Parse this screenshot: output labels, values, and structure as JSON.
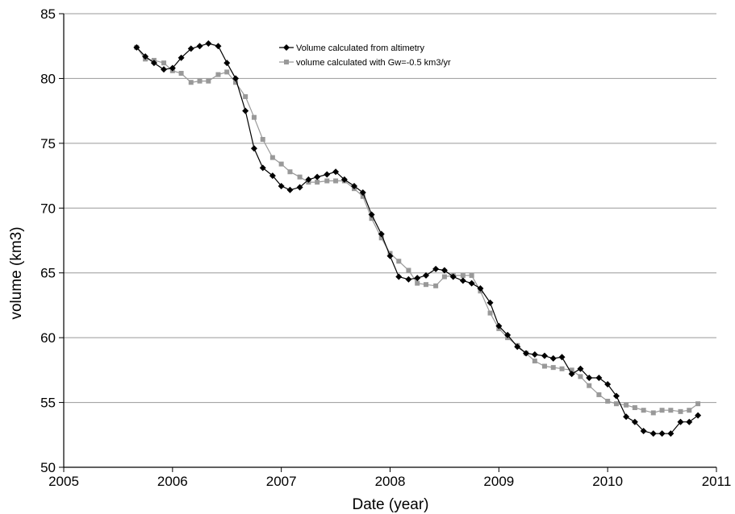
{
  "chart_data": {
    "type": "line",
    "title": "",
    "xlabel": "Date (year)",
    "ylabel": "volume (km3)",
    "xlim": [
      2005,
      2011
    ],
    "ylim": [
      50,
      85
    ],
    "xticks": [
      "2005",
      "2006",
      "2007",
      "2008",
      "2009",
      "2010",
      "2011"
    ],
    "yticks": [
      "50",
      "55",
      "60",
      "65",
      "70",
      "75",
      "80",
      "85"
    ],
    "grid": "horizontal",
    "legend_position": "top-center",
    "series": [
      {
        "name": "Volume calculated from altimetry",
        "color": "#000000",
        "marker": "diamond",
        "points": [
          [
            2005.67,
            82.4
          ],
          [
            2005.75,
            81.7
          ],
          [
            2005.83,
            81.2
          ],
          [
            2005.92,
            80.7
          ],
          [
            2006.0,
            80.8
          ],
          [
            2006.08,
            81.6
          ],
          [
            2006.17,
            82.3
          ],
          [
            2006.25,
            82.5
          ],
          [
            2006.33,
            82.7
          ],
          [
            2006.42,
            82.5
          ],
          [
            2006.5,
            81.2
          ],
          [
            2006.58,
            80.0
          ],
          [
            2006.67,
            77.5
          ],
          [
            2006.75,
            74.6
          ],
          [
            2006.83,
            73.1
          ],
          [
            2006.92,
            72.5
          ],
          [
            2007.0,
            71.7
          ],
          [
            2007.08,
            71.4
          ],
          [
            2007.17,
            71.6
          ],
          [
            2007.25,
            72.2
          ],
          [
            2007.33,
            72.4
          ],
          [
            2007.42,
            72.6
          ],
          [
            2007.5,
            72.8
          ],
          [
            2007.58,
            72.2
          ],
          [
            2007.67,
            71.7
          ],
          [
            2007.75,
            71.2
          ],
          [
            2007.83,
            69.5
          ],
          [
            2007.92,
            68.0
          ],
          [
            2008.0,
            66.3
          ],
          [
            2008.08,
            64.7
          ],
          [
            2008.17,
            64.5
          ],
          [
            2008.25,
            64.6
          ],
          [
            2008.33,
            64.8
          ],
          [
            2008.42,
            65.3
          ],
          [
            2008.5,
            65.2
          ],
          [
            2008.58,
            64.7
          ],
          [
            2008.67,
            64.4
          ],
          [
            2008.75,
            64.2
          ],
          [
            2008.83,
            63.8
          ],
          [
            2008.92,
            62.7
          ],
          [
            2009.0,
            60.9
          ],
          [
            2009.08,
            60.2
          ],
          [
            2009.17,
            59.3
          ],
          [
            2009.25,
            58.8
          ],
          [
            2009.33,
            58.7
          ],
          [
            2009.42,
            58.6
          ],
          [
            2009.5,
            58.4
          ],
          [
            2009.58,
            58.5
          ],
          [
            2009.67,
            57.2
          ],
          [
            2009.75,
            57.6
          ],
          [
            2009.83,
            56.9
          ],
          [
            2009.92,
            56.9
          ],
          [
            2010.0,
            56.4
          ],
          [
            2010.08,
            55.5
          ],
          [
            2010.17,
            53.9
          ],
          [
            2010.25,
            53.5
          ],
          [
            2010.33,
            52.8
          ],
          [
            2010.42,
            52.6
          ],
          [
            2010.5,
            52.6
          ],
          [
            2010.58,
            52.6
          ],
          [
            2010.67,
            53.5
          ],
          [
            2010.75,
            53.5
          ],
          [
            2010.83,
            54.0
          ]
        ]
      },
      {
        "name": "volume calculated with Gw=-0.5 km3/yr",
        "color": "#999999",
        "marker": "square",
        "points": [
          [
            2005.67,
            82.4
          ],
          [
            2005.75,
            81.5
          ],
          [
            2005.83,
            81.4
          ],
          [
            2005.92,
            81.2
          ],
          [
            2006.0,
            80.6
          ],
          [
            2006.08,
            80.4
          ],
          [
            2006.17,
            79.7
          ],
          [
            2006.25,
            79.8
          ],
          [
            2006.33,
            79.8
          ],
          [
            2006.42,
            80.3
          ],
          [
            2006.5,
            80.5
          ],
          [
            2006.58,
            79.7
          ],
          [
            2006.67,
            78.6
          ],
          [
            2006.75,
            77.0
          ],
          [
            2006.83,
            75.3
          ],
          [
            2006.92,
            73.9
          ],
          [
            2007.0,
            73.4
          ],
          [
            2007.08,
            72.8
          ],
          [
            2007.17,
            72.4
          ],
          [
            2007.25,
            72.0
          ],
          [
            2007.33,
            72.0
          ],
          [
            2007.42,
            72.1
          ],
          [
            2007.5,
            72.1
          ],
          [
            2007.58,
            72.1
          ],
          [
            2007.67,
            71.5
          ],
          [
            2007.75,
            70.9
          ],
          [
            2007.83,
            69.2
          ],
          [
            2007.92,
            67.7
          ],
          [
            2008.0,
            66.5
          ],
          [
            2008.08,
            65.9
          ],
          [
            2008.17,
            65.2
          ],
          [
            2008.25,
            64.2
          ],
          [
            2008.33,
            64.1
          ],
          [
            2008.42,
            64.0
          ],
          [
            2008.5,
            64.7
          ],
          [
            2008.58,
            64.8
          ],
          [
            2008.67,
            64.8
          ],
          [
            2008.75,
            64.8
          ],
          [
            2008.83,
            63.6
          ],
          [
            2008.92,
            61.9
          ],
          [
            2009.0,
            60.7
          ],
          [
            2009.08,
            60.0
          ],
          [
            2009.17,
            59.4
          ],
          [
            2009.25,
            58.8
          ],
          [
            2009.33,
            58.2
          ],
          [
            2009.42,
            57.8
          ],
          [
            2009.5,
            57.7
          ],
          [
            2009.58,
            57.6
          ],
          [
            2009.67,
            57.5
          ],
          [
            2009.75,
            57.0
          ],
          [
            2009.83,
            56.3
          ],
          [
            2009.92,
            55.6
          ],
          [
            2010.0,
            55.1
          ],
          [
            2010.08,
            54.9
          ],
          [
            2010.17,
            54.8
          ],
          [
            2010.25,
            54.6
          ],
          [
            2010.33,
            54.4
          ],
          [
            2010.42,
            54.2
          ],
          [
            2010.5,
            54.4
          ],
          [
            2010.58,
            54.4
          ],
          [
            2010.67,
            54.3
          ],
          [
            2010.75,
            54.4
          ],
          [
            2010.83,
            54.9
          ]
        ]
      }
    ]
  }
}
